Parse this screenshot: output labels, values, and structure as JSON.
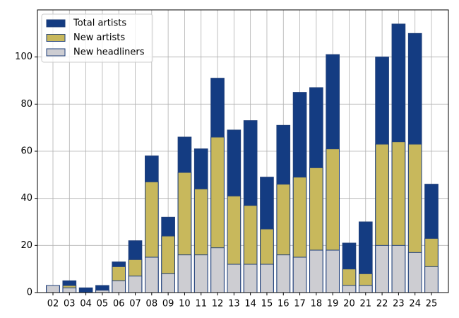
{
  "chart_data": {
    "type": "bar",
    "categories": [
      "02",
      "03",
      "04",
      "05",
      "06",
      "07",
      "08",
      "09",
      "10",
      "11",
      "12",
      "13",
      "14",
      "15",
      "16",
      "17",
      "18",
      "19",
      "20",
      "21",
      "22",
      "23",
      "24",
      "25"
    ],
    "series": [
      {
        "name": "Total artists",
        "color": "#143c82",
        "values": [
          3,
          5,
          2,
          3,
          13,
          22,
          58,
          32,
          66,
          61,
          91,
          69,
          73,
          49,
          71,
          85,
          87,
          101,
          21,
          30,
          100,
          114,
          110,
          46
        ]
      },
      {
        "name": "New artists",
        "color": "#c8b85c",
        "values": [
          3,
          3,
          0,
          1,
          11,
          14,
          47,
          24,
          51,
          44,
          66,
          41,
          37,
          27,
          46,
          49,
          53,
          61,
          10,
          8,
          63,
          64,
          63,
          23
        ]
      },
      {
        "name": "New headliners",
        "color": "#cdcdd2",
        "values": [
          3,
          2,
          0,
          1,
          5,
          7,
          15,
          8,
          16,
          16,
          19,
          12,
          12,
          12,
          16,
          15,
          18,
          18,
          3,
          3,
          20,
          20,
          17,
          11
        ]
      }
    ],
    "ylim": [
      0,
      120
    ],
    "yticks": [
      0,
      20,
      40,
      60,
      80,
      100
    ],
    "grid": true,
    "legend": "upper left",
    "edge_color": "#1f3f7a"
  }
}
